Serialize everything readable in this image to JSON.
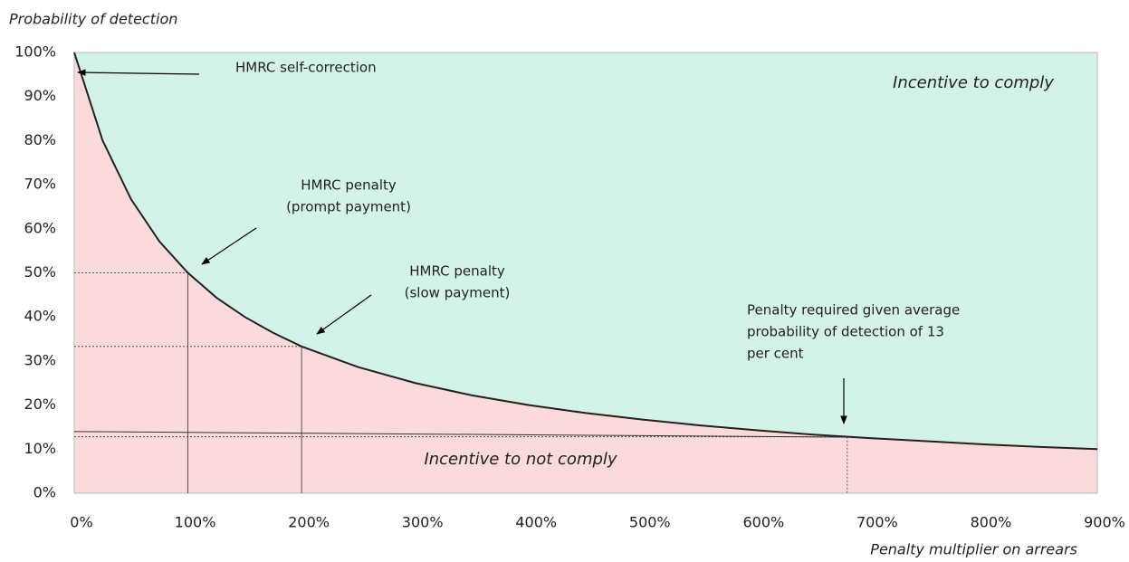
{
  "chart_data": {
    "type": "area",
    "y_label": "Probability of detection",
    "x_label": "Penalty multiplier on arrears",
    "x": [
      0,
      25,
      50,
      75,
      100,
      125,
      150,
      175,
      200,
      250,
      300,
      350,
      400,
      450,
      500,
      550,
      600,
      650,
      700,
      750,
      800,
      850,
      900
    ],
    "values": [
      100,
      80,
      66.7,
      57.1,
      50,
      44.4,
      40,
      36.4,
      33.3,
      28.6,
      25,
      22.2,
      20,
      18.2,
      16.7,
      15.4,
      14.3,
      13.3,
      12.5,
      11.8,
      11.1,
      10.5,
      10
    ],
    "line_color": "#222222",
    "above_color": "#d4f3e8",
    "below_color": "#fadadb",
    "xlim": [
      0,
      900
    ],
    "ylim": [
      0,
      100
    ],
    "xticks": [
      {
        "value": 0,
        "label": "0%"
      },
      {
        "value": 100,
        "label": "100%"
      },
      {
        "value": 200,
        "label": "200%"
      },
      {
        "value": 300,
        "label": "300%"
      },
      {
        "value": 400,
        "label": "400%"
      },
      {
        "value": 500,
        "label": "500%"
      },
      {
        "value": 600,
        "label": "600%"
      },
      {
        "value": 700,
        "label": "700%"
      },
      {
        "value": 800,
        "label": "800%"
      },
      {
        "value": 900,
        "label": "900%"
      }
    ],
    "yticks": [
      {
        "value": 0,
        "label": "0%"
      },
      {
        "value": 10,
        "label": "10%"
      },
      {
        "value": 20,
        "label": "20%"
      },
      {
        "value": 30,
        "label": "30%"
      },
      {
        "value": 40,
        "label": "40%"
      },
      {
        "value": 50,
        "label": "50%"
      },
      {
        "value": 60,
        "label": "60%"
      },
      {
        "value": 70,
        "label": "70%"
      },
      {
        "value": 80,
        "label": "80%"
      },
      {
        "value": 90,
        "label": "90%"
      },
      {
        "value": 100,
        "label": "100%"
      }
    ],
    "markers": [
      {
        "x": 100,
        "y": 50,
        "vertical": "solid"
      },
      {
        "x": 200,
        "y": 33.3,
        "vertical": "solid"
      },
      {
        "x": 680,
        "y": 12.8,
        "vertical": "dotted"
      }
    ],
    "threshold": {
      "x": [
        0,
        690
      ],
      "values": [
        14,
        12.7
      ]
    },
    "annotations": [
      {
        "lines": [
          "HMRC self-correction"
        ]
      },
      {
        "lines": [
          "HMRC penalty",
          "(prompt payment)"
        ]
      },
      {
        "lines": [
          "HMRC penalty",
          "(slow payment)"
        ]
      },
      {
        "lines": [
          "Penalty required given average",
          "probability of detection of 13",
          "per cent"
        ]
      }
    ],
    "region_labels": [
      "Incentive to comply",
      "Incentive to not comply"
    ]
  }
}
